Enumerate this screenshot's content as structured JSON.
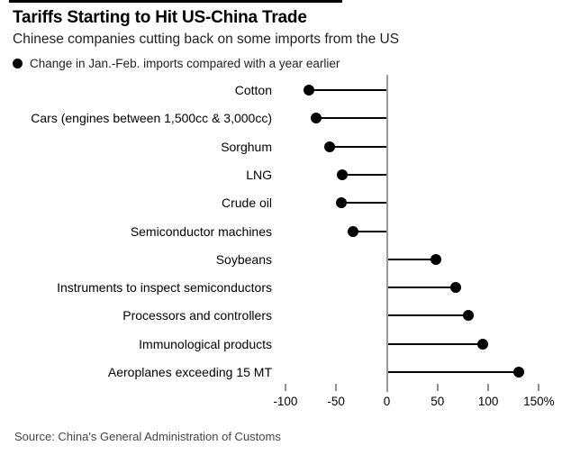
{
  "header": {
    "title": "Tariffs Starting to Hit US-China Trade",
    "subtitle": "Chinese companies cutting back on some imports from the US",
    "legend": {
      "bullet_icon": "dot-icon",
      "label": "Change in Jan.-Feb. imports compared with a year earlier"
    }
  },
  "chart_data": {
    "type": "bar",
    "variant": "horizontal-lollipop",
    "title": "Tariffs Starting to Hit US-China Trade",
    "subtitle": "Chinese companies cutting back on some imports from the US",
    "series_label": "Change in Jan.-Feb. imports compared with a year earlier",
    "unit": "%",
    "categories": [
      "Cotton",
      "Cars (engines between 1,500cc & 3,000cc)",
      "Sorghum",
      "LNG",
      "Crude oil",
      "Semiconductor machines",
      "Soybeans",
      "Instruments to inspect semiconductors",
      "Processors and controllers",
      "Immunological products",
      "Aeroplanes exceeding 15 MT"
    ],
    "values": [
      -77,
      -70,
      -56,
      -44,
      -45,
      -33,
      48,
      68,
      80,
      95,
      130
    ],
    "baseline": 0,
    "x_ticks": [
      -100,
      -50,
      0,
      50,
      100,
      150
    ],
    "x_tick_labels": [
      "-100",
      "-50",
      "0",
      "50",
      "100",
      "150%"
    ],
    "xlim": [
      -100,
      150
    ],
    "grid": false,
    "legend_position": "top-left"
  },
  "footer": {
    "source": "Source: China's General Administration of Customs"
  },
  "colors": {
    "background": "#ffffff",
    "top_rule": "#000000",
    "title_text": "#000000",
    "subtitle_text": "#1f1f1f",
    "label_text": "#000000",
    "dot": "#000000",
    "line": "#000000",
    "axis_line": "#9b9b9b",
    "tick_mark": "#8f8f8f",
    "source_text": "#454545"
  }
}
